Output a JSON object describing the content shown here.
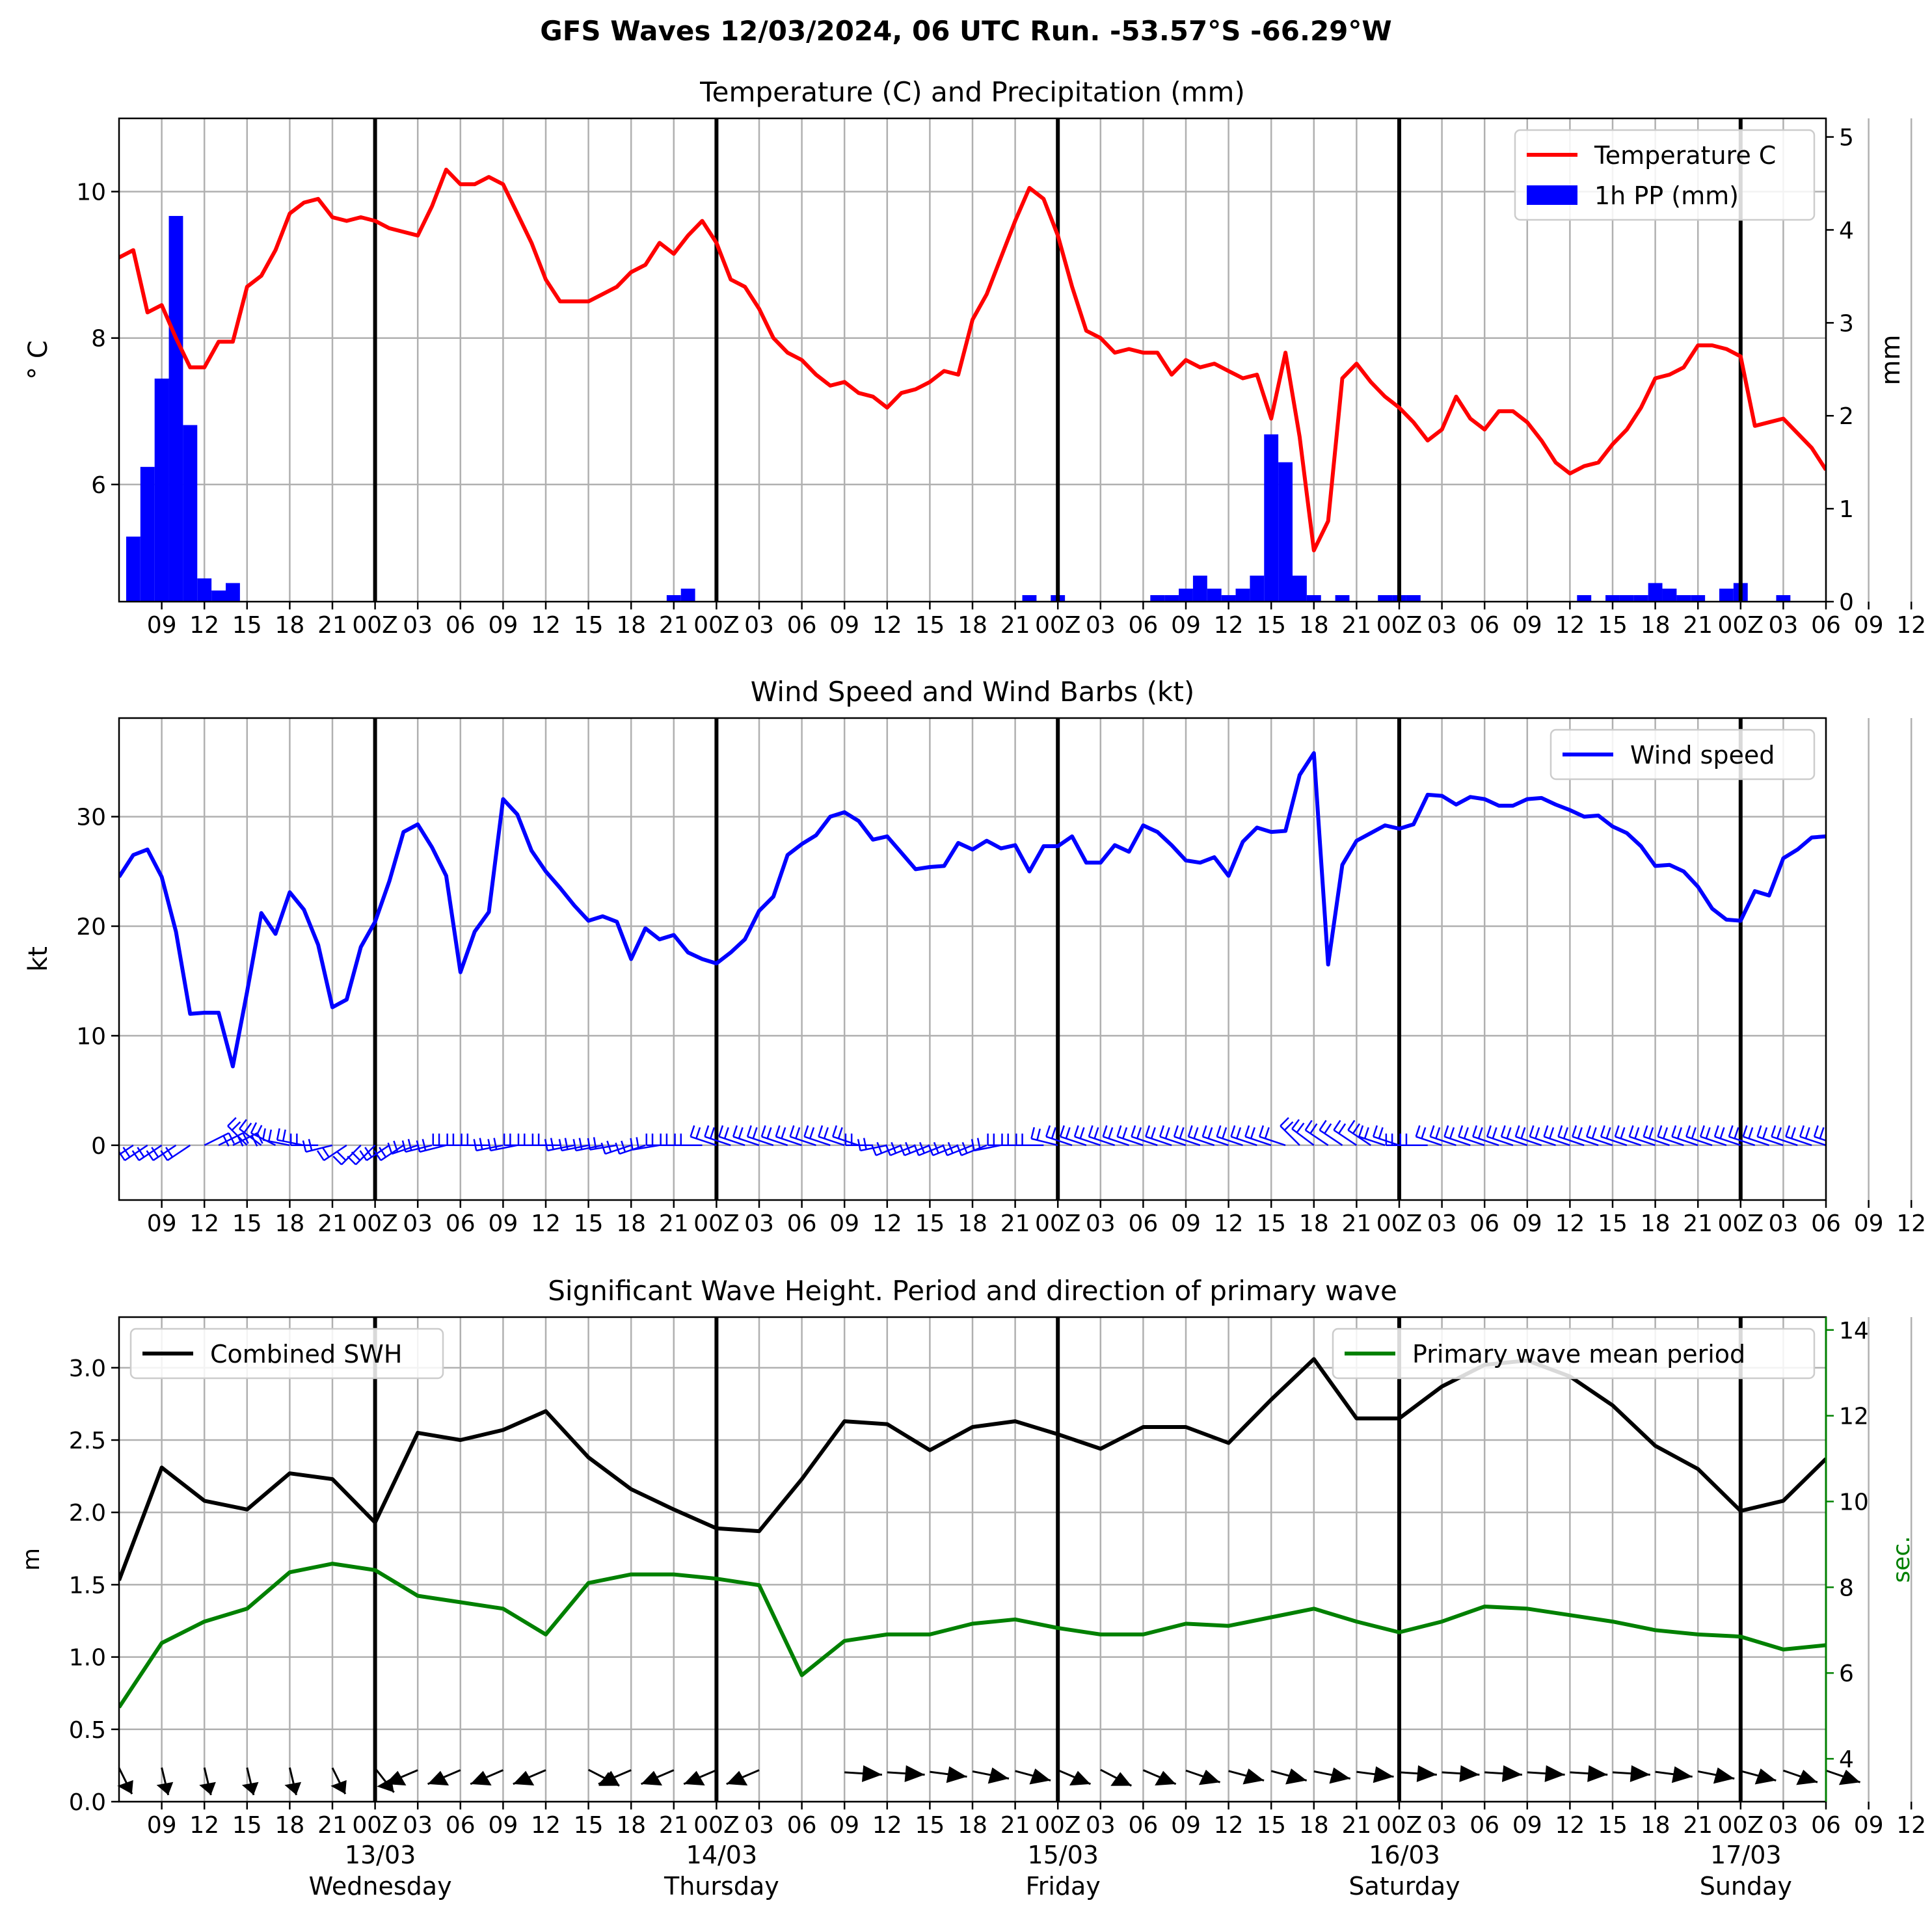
{
  "figure": {
    "suptitle": "GFS Waves 12/03/2024, 06 UTC Run. -53.57°S -66.29°W"
  },
  "time_axis": {
    "tick_hours": [
      3,
      6,
      9,
      12,
      15,
      18,
      21,
      24,
      27,
      30,
      33,
      36,
      39,
      42,
      45,
      48,
      51,
      54,
      57,
      60,
      63,
      66,
      69,
      72,
      75,
      78,
      81,
      84,
      87,
      90,
      93,
      96,
      99,
      102,
      105,
      108,
      111,
      114,
      117,
      120,
      123,
      126,
      129,
      132,
      135,
      138,
      141,
      144
    ],
    "tick_labels": [
      "09",
      "12",
      "15",
      "18",
      "21",
      "00Z",
      "03",
      "06",
      "09",
      "12",
      "15",
      "18",
      "21",
      "00Z",
      "03",
      "06",
      "09",
      "12",
      "15",
      "18",
      "21",
      "00Z",
      "03",
      "06",
      "09",
      "12",
      "15",
      "18",
      "21",
      "00Z",
      "03",
      "06",
      "09",
      "12",
      "15",
      "18",
      "21",
      "00Z",
      "03",
      "06",
      "09",
      "12",
      "15",
      "18",
      "21",
      "00Z",
      "03",
      "06"
    ],
    "day_hours": [
      18,
      42,
      66,
      90,
      114
    ],
    "day_labels": [
      {
        "date": "13/03",
        "weekday": "Wednesday"
      },
      {
        "date": "14/03",
        "weekday": "Thursday"
      },
      {
        "date": "15/03",
        "weekday": "Friday"
      },
      {
        "date": "16/03",
        "weekday": "Saturday"
      },
      {
        "date": "17/03",
        "weekday": "Sunday"
      }
    ],
    "x_range_hours": [
      0,
      120
    ]
  },
  "chart_data": [
    {
      "type": "line",
      "title": "Temperature (C) and Precipitation (mm)",
      "ylabel": "$^\\circ$C",
      "ylabel_display": "° C",
      "y2label": "mm",
      "ylim": [
        4.4,
        11.0
      ],
      "y2lim": [
        0,
        5.2
      ],
      "yticks": [
        6,
        8,
        10
      ],
      "y2ticks": [
        0,
        1,
        2,
        3,
        4,
        5
      ],
      "legend": "top-right",
      "series": [
        {
          "name": "Temperature C",
          "color": "#ff0000",
          "x_step": 1,
          "values": [
            9.1,
            9.2,
            8.35,
            8.45,
            8.0,
            7.6,
            7.6,
            7.95,
            7.95,
            8.7,
            8.85,
            9.2,
            9.7,
            9.85,
            9.9,
            9.65,
            9.6,
            9.65,
            9.6,
            9.5,
            9.45,
            9.4,
            9.8,
            10.3,
            10.1,
            10.1,
            10.2,
            10.1,
            9.7,
            9.3,
            8.8,
            8.5,
            8.5,
            8.5,
            8.6,
            8.7,
            8.9,
            9.0,
            9.3,
            9.15,
            9.4,
            9.6,
            9.3,
            8.8,
            8.7,
            8.4,
            8.0,
            7.8,
            7.7,
            7.5,
            7.35,
            7.4,
            7.25,
            7.2,
            7.05,
            7.25,
            7.3,
            7.4,
            7.55,
            7.5,
            8.25,
            8.6,
            9.1,
            9.6,
            10.05,
            9.9,
            9.4,
            8.7,
            8.1,
            8.0,
            7.8,
            7.85,
            7.8,
            7.8,
            7.5,
            7.7,
            7.6,
            7.65,
            7.55,
            7.45,
            7.5,
            6.9,
            7.8,
            6.65,
            5.1,
            5.5,
            7.45,
            7.65,
            7.4,
            7.2,
            7.05,
            6.85,
            6.6,
            6.75,
            7.2,
            6.9,
            6.75,
            7.0,
            7.0,
            6.85,
            6.6,
            6.3,
            6.15,
            6.25,
            6.3,
            6.55,
            6.75,
            7.05,
            7.45,
            7.5,
            7.6,
            7.9,
            7.9,
            7.85,
            7.75,
            6.8,
            6.85,
            6.9,
            6.7,
            6.5,
            6.2
          ]
        },
        {
          "name": "1h PP (mm)",
          "color": "#0000ff",
          "type": "bar",
          "axis": "right",
          "x_step": 1,
          "values": [
            0,
            0.7,
            1.45,
            2.4,
            4.15,
            1.9,
            0.25,
            0.12,
            0.2,
            0,
            0,
            0,
            0,
            0,
            0,
            0,
            0,
            0,
            0,
            0,
            0,
            0,
            0,
            0,
            0,
            0,
            0,
            0,
            0,
            0,
            0,
            0,
            0,
            0,
            0,
            0,
            0,
            0,
            0,
            0.07,
            0.14,
            0,
            0,
            0,
            0,
            0,
            0,
            0,
            0,
            0,
            0,
            0,
            0,
            0,
            0,
            0,
            0,
            0,
            0,
            0,
            0,
            0,
            0,
            0,
            0.07,
            0,
            0.07,
            0,
            0,
            0,
            0,
            0,
            0,
            0.07,
            0.07,
            0.14,
            0.28,
            0.14,
            0.07,
            0.14,
            0.28,
            1.8,
            1.5,
            0.28,
            0.07,
            0,
            0.07,
            0,
            0,
            0.07,
            0.07,
            0.07,
            0,
            0,
            0,
            0,
            0,
            0,
            0,
            0,
            0,
            0,
            0,
            0.07,
            0,
            0.07,
            0.07,
            0.07,
            0.2,
            0.14,
            0.07,
            0.07,
            0,
            0.14,
            0.2,
            0,
            0,
            0.07,
            0,
            0
          ]
        }
      ]
    },
    {
      "type": "line",
      "title": "Wind Speed and Wind Barbs (kt)",
      "ylabel": "kt",
      "ylim": [
        -5,
        39
      ],
      "yticks": [
        0,
        10,
        20,
        30
      ],
      "legend": "top-right",
      "series": [
        {
          "name": "Wind speed",
          "color": "#0000ff",
          "x_step": 1,
          "values": [
            24.5,
            26.5,
            27.0,
            24.5,
            19.5,
            12.0,
            12.1,
            12.1,
            7.2,
            14.0,
            21.2,
            19.3,
            23.1,
            21.5,
            18.3,
            12.6,
            13.3,
            18.1,
            20.4,
            24.1,
            28.6,
            29.3,
            27.2,
            24.6,
            15.8,
            19.5,
            21.3,
            31.6,
            30.2,
            26.9,
            25.0,
            23.5,
            21.9,
            20.5,
            20.9,
            20.4,
            17.0,
            19.8,
            18.8,
            19.2,
            17.6,
            17.0,
            16.6,
            17.6,
            18.8,
            21.4,
            22.7,
            26.5,
            27.5,
            28.3,
            30.0,
            30.4,
            29.6,
            27.9,
            28.2,
            26.7,
            25.2,
            25.4,
            25.5,
            27.6,
            27.0,
            27.8,
            27.1,
            27.4,
            25.0,
            27.3,
            27.3,
            28.2,
            25.8,
            25.8,
            27.4,
            26.8,
            29.2,
            28.6,
            27.4,
            26.0,
            25.8,
            26.3,
            24.6,
            27.7,
            29.0,
            28.6,
            28.7,
            33.8,
            35.8,
            16.5,
            25.6,
            27.8,
            28.5,
            29.2,
            28.9,
            29.3,
            32.0,
            31.9,
            31.1,
            31.8,
            31.6,
            31.0,
            31.0,
            31.6,
            31.7,
            31.1,
            30.6,
            30.0,
            30.1,
            29.1,
            28.5,
            27.3,
            25.5,
            25.6,
            25.0,
            23.6,
            21.6,
            20.6,
            20.5,
            23.2,
            22.8,
            26.2,
            27.0,
            28.1,
            28.2
          ]
        }
      ],
      "wind_barbs": {
        "note": "barbs drawn at y=0 every hour",
        "x_step": 1,
        "u": [
          -3,
          -3,
          -3,
          -3,
          -3,
          -3,
          4,
          4,
          4,
          -3,
          -4,
          -4,
          -5,
          -5,
          -5,
          -4,
          -3,
          -2,
          -2,
          -3,
          -3,
          -3,
          -4,
          -4,
          -4,
          -4,
          -4,
          -5,
          -5,
          -5,
          -5,
          -5,
          -5,
          -5,
          -5,
          -6,
          -6,
          -6,
          -6,
          -5,
          -4,
          -3,
          -3,
          -3,
          -3,
          -3,
          -3,
          -3,
          -3,
          -3,
          -3,
          -3,
          -3,
          -4,
          -5,
          -5,
          -5,
          -5,
          -5,
          -5,
          -5,
          -5,
          -5,
          -5,
          -5,
          -5,
          -4,
          -3,
          -3,
          -3,
          -3,
          -3,
          -3,
          -3,
          -3,
          -3,
          -3,
          -3,
          -3,
          -3,
          -3,
          -3,
          -3,
          -3,
          -4,
          -3,
          -3,
          -3,
          -3,
          -3,
          -3,
          -2,
          -2,
          -3,
          -3,
          -3,
          -3,
          -3,
          -3,
          -3,
          -3,
          -3,
          -3,
          -3,
          -3,
          -3,
          -3,
          -3,
          -3,
          -3,
          -3,
          -3,
          -3,
          -3,
          -3,
          -3,
          -3,
          -3,
          -3,
          -3,
          -3,
          -3
        ],
        "v": [
          -2,
          -2,
          -2,
          -2,
          -2,
          -2,
          2,
          2,
          2,
          3,
          3,
          2,
          1,
          1,
          0,
          -1,
          -2,
          -2,
          -2,
          -2,
          -2,
          -1,
          -1,
          -1,
          0,
          0,
          0,
          -1,
          -1,
          0,
          0,
          0,
          -1,
          -1,
          -1,
          -1,
          -2,
          -2,
          -1,
          0,
          0,
          0,
          1,
          1,
          1,
          1,
          1,
          1,
          1,
          1,
          1,
          1,
          1,
          0,
          -1,
          -2,
          -2,
          -2,
          -2,
          -2,
          -2,
          -2,
          -1,
          0,
          0,
          0,
          1,
          1,
          1,
          1,
          1,
          1,
          1,
          1,
          1,
          1,
          1,
          1,
          1,
          1,
          1,
          1,
          1,
          3,
          3,
          2,
          2,
          2,
          2,
          1,
          1,
          0,
          0,
          1,
          1,
          1,
          1,
          1,
          1,
          1,
          1,
          1,
          1,
          1,
          1,
          1,
          1,
          1,
          1,
          1,
          1,
          1,
          1,
          1,
          1,
          1,
          1,
          1,
          1,
          1,
          1,
          1,
          1
        ]
      }
    },
    {
      "type": "line",
      "title": "Significant Wave Height. Period and direction of primary wave",
      "ylabel": "m",
      "y2label": "sec.",
      "ylim": [
        0,
        3.35
      ],
      "y2lim": [
        3.0,
        14.3
      ],
      "yticks": [
        0.0,
        0.5,
        1.0,
        1.5,
        2.0,
        2.5,
        3.0
      ],
      "y2ticks": [
        4,
        6,
        8,
        10,
        12,
        14
      ],
      "legend_left": "top-left",
      "legend_right": "top-right",
      "series": [
        {
          "name": "Combined SWH",
          "color": "#000000",
          "x_step": 3,
          "values": [
            1.53,
            2.31,
            2.08,
            2.02,
            2.27,
            2.23,
            1.93,
            2.55,
            2.5,
            2.57,
            2.7,
            2.38,
            2.16,
            2.02,
            1.89,
            1.87,
            2.23,
            2.63,
            2.61,
            2.43,
            2.59,
            2.63,
            2.54,
            2.44,
            2.59,
            2.59,
            2.48,
            2.78,
            3.06,
            2.65,
            2.65,
            2.87,
            3.02,
            3.05,
            2.94,
            2.74,
            2.46,
            2.3,
            2.01,
            2.08,
            2.37
          ]
        },
        {
          "name": "Primary wave mean period",
          "color": "#008000",
          "axis": "right",
          "x_step": 3,
          "values": [
            5.2,
            6.7,
            7.2,
            7.5,
            8.35,
            8.55,
            8.4,
            7.8,
            7.65,
            7.5,
            6.9,
            8.1,
            8.3,
            8.3,
            8.2,
            8.05,
            5.95,
            6.75,
            6.9,
            6.9,
            7.15,
            7.25,
            7.05,
            6.9,
            6.9,
            7.15,
            7.1,
            7.3,
            7.5,
            7.2,
            6.95,
            7.2,
            7.55,
            7.5,
            7.35,
            7.2,
            7.0,
            6.9,
            6.85,
            6.55,
            6.65
          ]
        }
      ],
      "wave_direction_arrows": {
        "note": "arrows drawn at y=0.2 m every 3 h, direction in degrees (screen, 0=right, clockwise)",
        "x_step": 3,
        "angles_deg": [
          70,
          80,
          80,
          80,
          80,
          70,
          60,
          150,
          150,
          150,
          150,
          35,
          150,
          150,
          150,
          150,
          null,
          5,
          5,
          10,
          15,
          20,
          30,
          35,
          30,
          25,
          20,
          20,
          15,
          10,
          5,
          5,
          5,
          5,
          5,
          5,
          10,
          15,
          20,
          25,
          25
        ]
      }
    }
  ]
}
